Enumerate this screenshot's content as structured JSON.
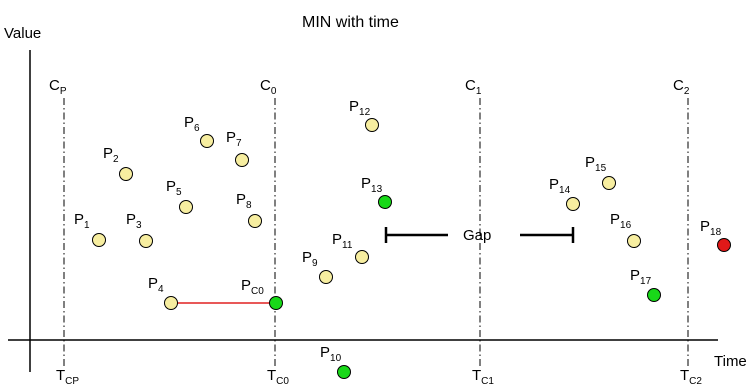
{
  "title": "MIN with time",
  "axes": {
    "y_label": "Value",
    "x_label": "Time"
  },
  "colors": {
    "normal": "#f7eea0",
    "min": "#18d818",
    "outlier": "#e01818",
    "link": "#e02020"
  },
  "time_lines": [
    {
      "id": "cp",
      "top_base": "C",
      "top_sub": "P",
      "bottom_base": "T",
      "bottom_sub": "CP"
    },
    {
      "id": "c0",
      "top_base": "C",
      "top_sub": "0",
      "bottom_base": "T",
      "bottom_sub": "C0"
    },
    {
      "id": "c1",
      "top_base": "C",
      "top_sub": "1",
      "bottom_base": "T",
      "bottom_sub": "C1"
    },
    {
      "id": "c2",
      "top_base": "C",
      "top_sub": "2",
      "bottom_base": "T",
      "bottom_sub": "C2"
    }
  ],
  "points": [
    {
      "id": "p1",
      "base": "P",
      "sub": "1",
      "kind": "normal"
    },
    {
      "id": "p2",
      "base": "P",
      "sub": "2",
      "kind": "normal"
    },
    {
      "id": "p3",
      "base": "P",
      "sub": "3",
      "kind": "normal"
    },
    {
      "id": "p4",
      "base": "P",
      "sub": "4",
      "kind": "normal"
    },
    {
      "id": "p5",
      "base": "P",
      "sub": "5",
      "kind": "normal"
    },
    {
      "id": "p6",
      "base": "P",
      "sub": "6",
      "kind": "normal"
    },
    {
      "id": "p7",
      "base": "P",
      "sub": "7",
      "kind": "normal"
    },
    {
      "id": "p8",
      "base": "P",
      "sub": "8",
      "kind": "normal"
    },
    {
      "id": "pc0",
      "base": "P",
      "sub": "C0",
      "kind": "min"
    },
    {
      "id": "p9",
      "base": "P",
      "sub": "9",
      "kind": "normal"
    },
    {
      "id": "p10",
      "base": "P",
      "sub": "10",
      "kind": "min"
    },
    {
      "id": "p11",
      "base": "P",
      "sub": "11",
      "kind": "normal"
    },
    {
      "id": "p12",
      "base": "P",
      "sub": "12",
      "kind": "normal"
    },
    {
      "id": "p13",
      "base": "P",
      "sub": "13",
      "kind": "min"
    },
    {
      "id": "p14",
      "base": "P",
      "sub": "14",
      "kind": "normal"
    },
    {
      "id": "p15",
      "base": "P",
      "sub": "15",
      "kind": "normal"
    },
    {
      "id": "p16",
      "base": "P",
      "sub": "16",
      "kind": "normal"
    },
    {
      "id": "p17",
      "base": "P",
      "sub": "17",
      "kind": "min"
    },
    {
      "id": "p18",
      "base": "P",
      "sub": "18",
      "kind": "outlier"
    }
  ],
  "gap_label": "Gap"
}
